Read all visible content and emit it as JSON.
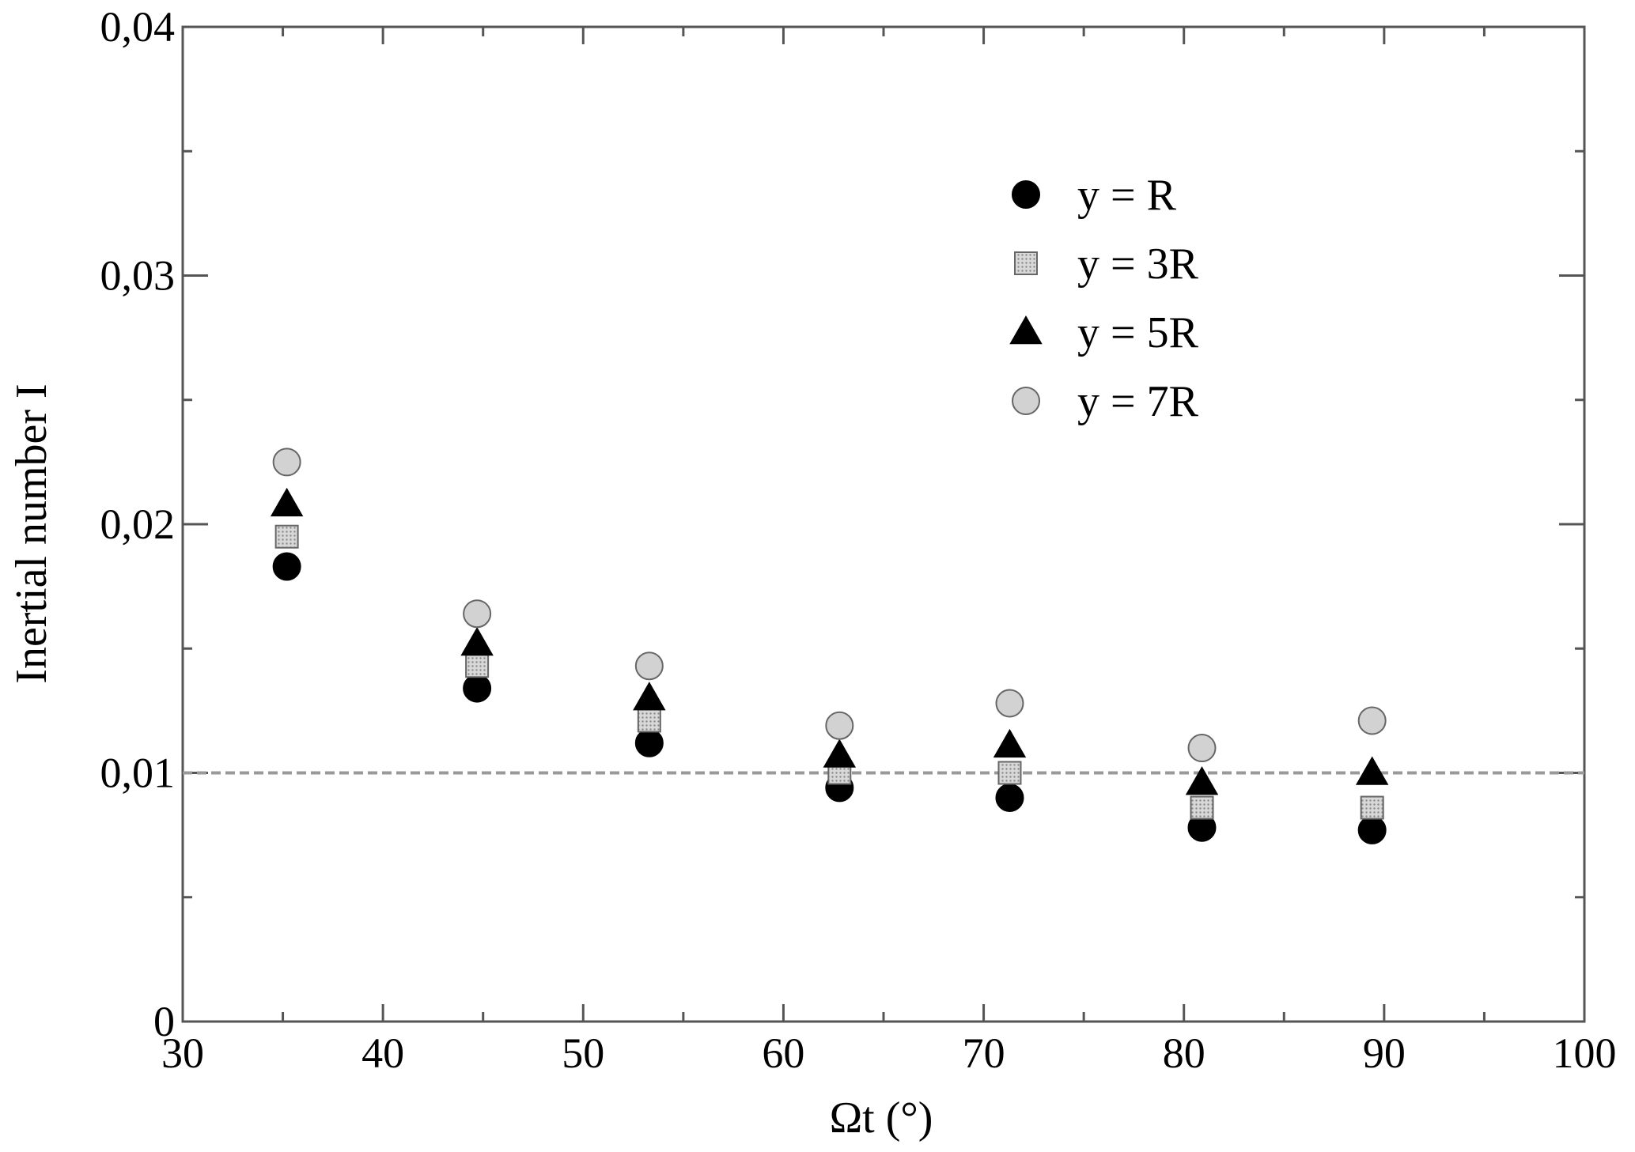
{
  "chart_data": {
    "type": "scatter",
    "xlabel": "Ωt (°)",
    "ylabel": "Inertial number I",
    "xlim": [
      30,
      100
    ],
    "ylim": [
      0,
      0.04
    ],
    "x_ticks": [
      30,
      40,
      50,
      60,
      70,
      80,
      90,
      100
    ],
    "x_tick_labels": [
      "30",
      "40",
      "50",
      "60",
      "70",
      "80",
      "90",
      "100"
    ],
    "y_ticks": [
      0,
      0.01,
      0.02,
      0.03,
      0.04
    ],
    "y_tick_labels": [
      "0",
      "0,01",
      "0,02",
      "0,03",
      "0,04"
    ],
    "x_minor_step": 5,
    "y_minor_step": 0.005,
    "grid": false,
    "legend_position": "top-right",
    "reference_line": {
      "y": 0.01,
      "style": "dashed",
      "color": "#999999"
    },
    "x": [
      35.2,
      44.7,
      53.3,
      62.8,
      71.3,
      80.9,
      89.4
    ],
    "series": [
      {
        "name": "y = R",
        "marker": "circle",
        "fill": "#000000",
        "values": [
          0.0183,
          0.0134,
          0.0112,
          0.0094,
          0.009,
          0.0078,
          0.0077
        ]
      },
      {
        "name": "y = 3R",
        "marker": "square",
        "fill": "#c8c8c8",
        "values": [
          0.0195,
          0.0143,
          0.0121,
          0.01,
          0.01,
          0.0086,
          0.0086
        ]
      },
      {
        "name": "y = 5R",
        "marker": "triangle",
        "fill": "#000000",
        "values": [
          0.0208,
          0.0152,
          0.013,
          0.0107,
          0.0111,
          0.0096,
          0.01
        ]
      },
      {
        "name": "y = 7R",
        "marker": "circle",
        "fill": "#d2d2d2",
        "values": [
          0.0225,
          0.0164,
          0.0143,
          0.0119,
          0.0128,
          0.011,
          0.0121
        ]
      }
    ]
  }
}
